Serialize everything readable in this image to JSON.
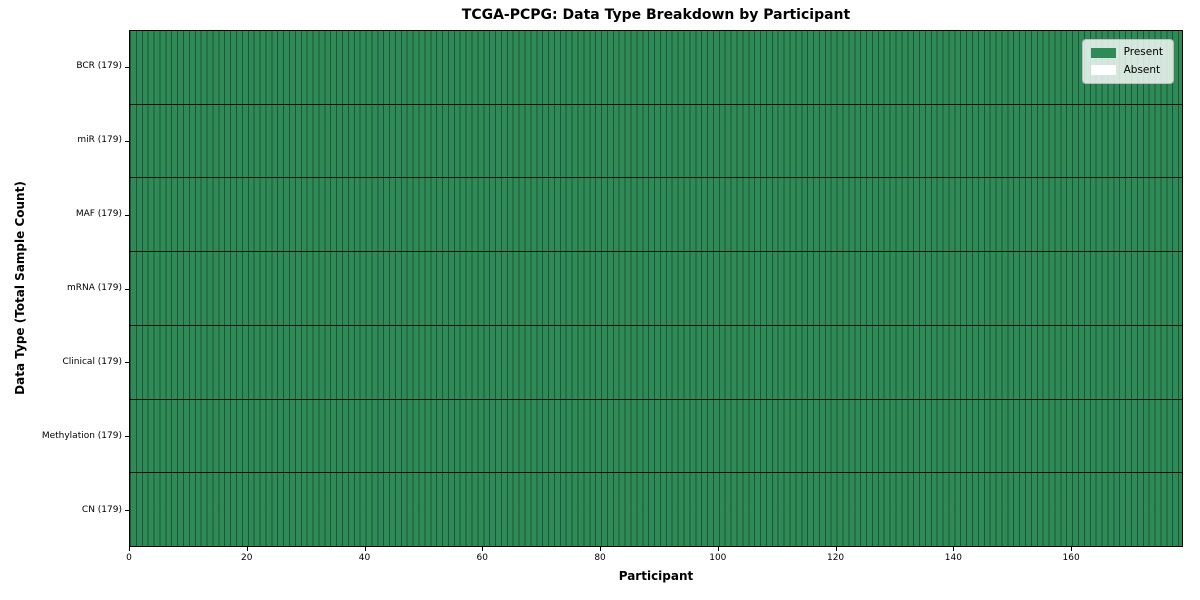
{
  "chart_data": {
    "type": "heatmap",
    "title": "TCGA-PCPG: Data Type Breakdown by Participant",
    "xlabel": "Participant",
    "ylabel": "Data Type (Total Sample Count)",
    "n_participants": 179,
    "x_range": [
      0,
      179
    ],
    "x_ticks": [
      0,
      20,
      40,
      60,
      80,
      100,
      120,
      140,
      160
    ],
    "rows": [
      {
        "label": "BCR (179)",
        "data_type": "BCR",
        "total_sample_count": 179,
        "present": 179,
        "absent": 0
      },
      {
        "label": "miR (179)",
        "data_type": "miR",
        "total_sample_count": 179,
        "present": 179,
        "absent": 0
      },
      {
        "label": "MAF (179)",
        "data_type": "MAF",
        "total_sample_count": 179,
        "present": 179,
        "absent": 0
      },
      {
        "label": "mRNA (179)",
        "data_type": "mRNA",
        "total_sample_count": 179,
        "present": 179,
        "absent": 0
      },
      {
        "label": "Clinical (179)",
        "data_type": "Clinical",
        "total_sample_count": 179,
        "present": 179,
        "absent": 0
      },
      {
        "label": "Methylation (179)",
        "data_type": "Methylation",
        "total_sample_count": 179,
        "present": 179,
        "absent": 0
      },
      {
        "label": "CN (179)",
        "data_type": "CN",
        "total_sample_count": 179,
        "present": 179,
        "absent": 0
      }
    ],
    "cell_values_note": "every cell Present for all 179 participants in all 7 rows",
    "legend": {
      "position": "upper-right",
      "entries": [
        {
          "label": "Present",
          "color": "#2E8B57"
        },
        {
          "label": "Absent",
          "color": "#FFFFFF"
        }
      ]
    },
    "grid": true,
    "colors": {
      "present_cell": "#2E8B57",
      "absent_cell": "#FFFFFF",
      "column_grid_line": "rgba(0,0,0,0.38)",
      "row_separator": "rgba(0,0,0,0.85)",
      "plot_border": "#000000",
      "background": "#FFFFFF"
    }
  }
}
